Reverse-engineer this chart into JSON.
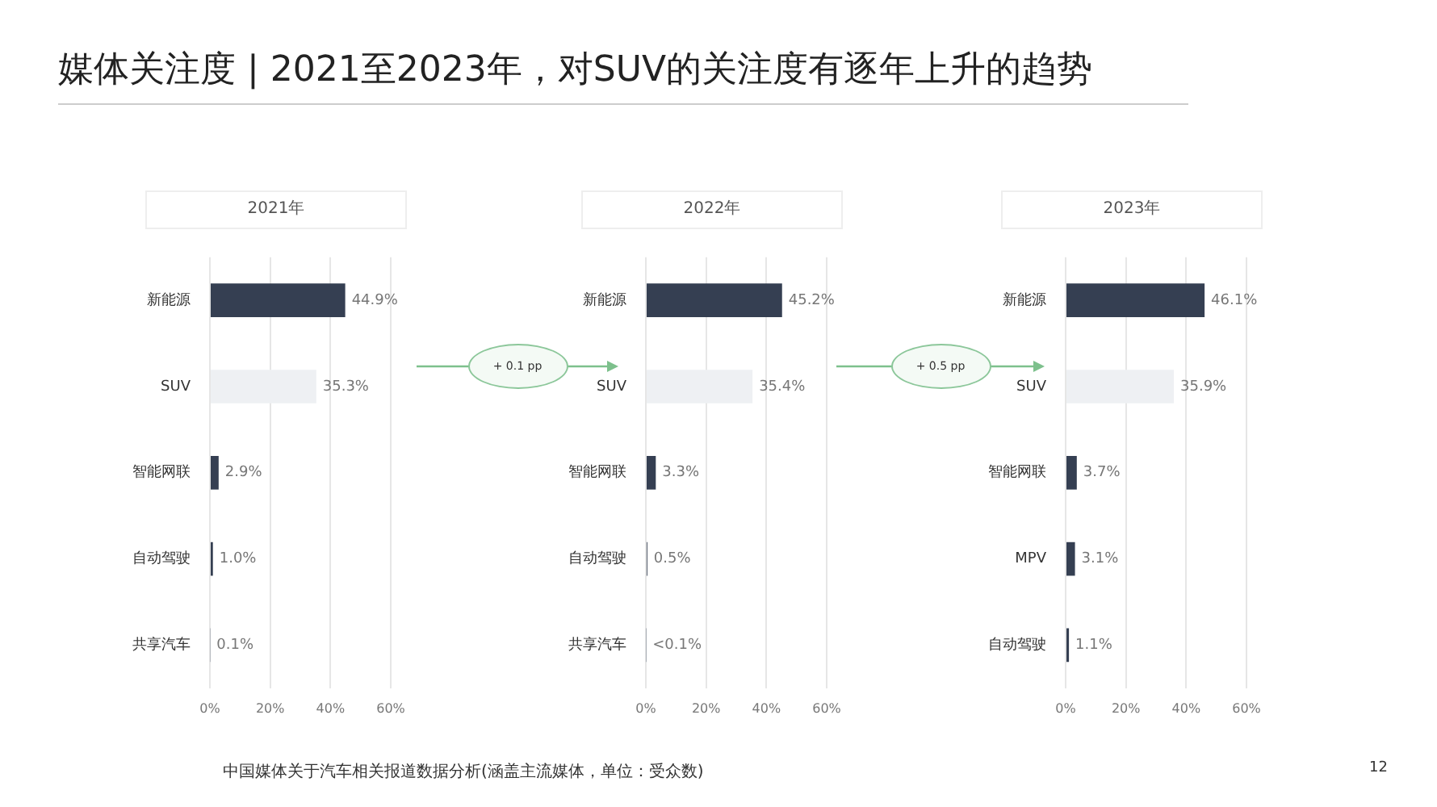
{
  "chart_data": [
    {
      "type": "bar",
      "orientation": "horizontal",
      "title": "2021年",
      "annotations": [
        "媒体关注度 | 2021至2023年，对SUV的关注度有逐年上升的趋势"
      ],
      "categories": [
        "新能源",
        "SUV",
        "智能网联",
        "自动驾驶",
        "共享汽车"
      ],
      "values": [
        44.9,
        35.3,
        2.9,
        1.0,
        0.1
      ],
      "value_labels": [
        "44.9%",
        "35.3%",
        "2.9%",
        "1.0%",
        "0.1%"
      ],
      "colors": [
        "#353f52",
        "#eef0f3",
        "#353f52",
        "#353f52",
        "#9aa0aa"
      ],
      "xlim": [
        0,
        60
      ],
      "xticks": [
        {
          "value": 0,
          "label": "0%"
        },
        {
          "value": 20,
          "label": "20%"
        },
        {
          "value": 40,
          "label": "40%"
        },
        {
          "value": 60,
          "label": "60%"
        }
      ],
      "grid": "x"
    },
    {
      "type": "bar",
      "orientation": "horizontal",
      "title": "2022年",
      "annotations": [
        "+ 0.1 pp"
      ],
      "categories": [
        "新能源",
        "SUV",
        "智能网联",
        "自动驾驶",
        "共享汽车"
      ],
      "values": [
        45.2,
        35.4,
        3.3,
        0.5,
        0.05
      ],
      "value_labels": [
        "45.2%",
        "35.4%",
        "3.3%",
        "0.5%",
        "<0.1%"
      ],
      "colors": [
        "#353f52",
        "#eef0f3",
        "#353f52",
        "#353f52",
        "#9aa0aa"
      ],
      "xlim": [
        0,
        60
      ],
      "xticks": [
        {
          "value": 0,
          "label": "0%"
        },
        {
          "value": 20,
          "label": "20%"
        },
        {
          "value": 40,
          "label": "40%"
        },
        {
          "value": 60,
          "label": "60%"
        }
      ],
      "grid": "x"
    },
    {
      "type": "bar",
      "orientation": "horizontal",
      "title": "2023年",
      "annotations": [
        "+ 0.5 pp",
        "中国媒体关于汽车相关报道数据分析(涵盖主流媒体，单位：受众数)",
        "12"
      ],
      "categories": [
        "新能源",
        "SUV",
        "智能网联",
        "MPV",
        "自动驾驶"
      ],
      "values": [
        46.1,
        35.9,
        3.7,
        3.1,
        1.1
      ],
      "value_labels": [
        "46.1%",
        "35.9%",
        "3.7%",
        "3.1%",
        "1.1%"
      ],
      "colors": [
        "#353f52",
        "#eef0f3",
        "#353f52",
        "#353f52",
        "#353f52"
      ],
      "xlim": [
        0,
        60
      ],
      "xticks": [
        {
          "value": 0,
          "label": "0%"
        },
        {
          "value": 20,
          "label": "20%"
        },
        {
          "value": 40,
          "label": "40%"
        },
        {
          "value": 60,
          "label": "60%"
        }
      ],
      "grid": "x"
    }
  ]
}
